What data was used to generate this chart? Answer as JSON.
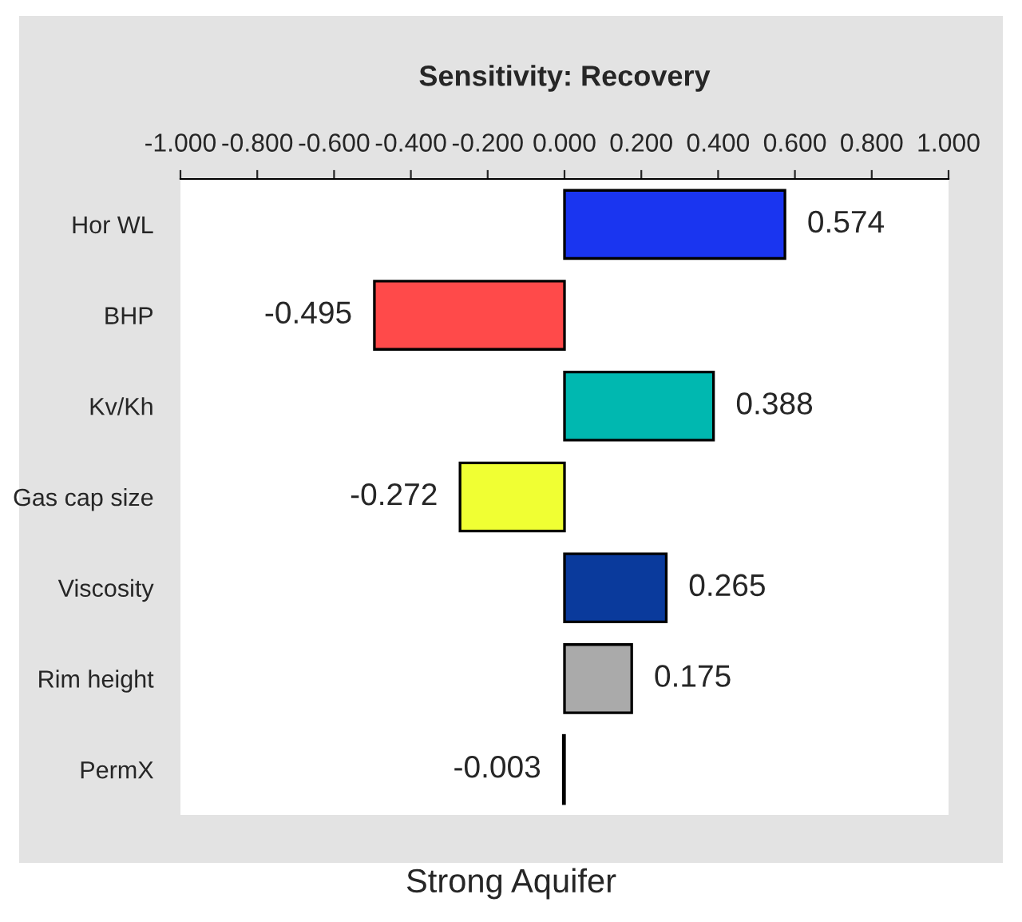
{
  "chart_data": {
    "type": "bar",
    "orientation": "horizontal",
    "title": "Sensitivity: Recovery",
    "categories": [
      "Hor WL",
      "BHP",
      "Kv/Kh",
      "Gas cap size",
      "Viscosity",
      "Rim height",
      "PermX"
    ],
    "values": [
      0.574,
      -0.495,
      0.388,
      -0.272,
      0.265,
      0.175,
      -0.003
    ],
    "colors": [
      "#1a35f0",
      "#ff4a4a",
      "#00b8b0",
      "#f0ff33",
      "#0a3a9c",
      "#aaaaaa",
      "#222222"
    ],
    "xlim": [
      -1.0,
      1.0
    ],
    "xticks": [
      {
        "value": -1.0,
        "label": "-1.000"
      },
      {
        "value": -0.8,
        "label": "-0.800"
      },
      {
        "value": -0.6,
        "label": "-0.600"
      },
      {
        "value": -0.4,
        "label": "-0.400"
      },
      {
        "value": -0.2,
        "label": "-0.200"
      },
      {
        "value": 0.0,
        "label": "0.000"
      },
      {
        "value": 0.2,
        "label": "0.200"
      },
      {
        "value": 0.4,
        "label": "0.400"
      },
      {
        "value": 0.6,
        "label": "0.600"
      },
      {
        "value": 0.8,
        "label": "0.800"
      },
      {
        "value": 1.0,
        "label": "1.000"
      }
    ],
    "data_labels": true,
    "grid": false,
    "legend": false,
    "annotations": [
      "Strong Aquifer"
    ]
  }
}
